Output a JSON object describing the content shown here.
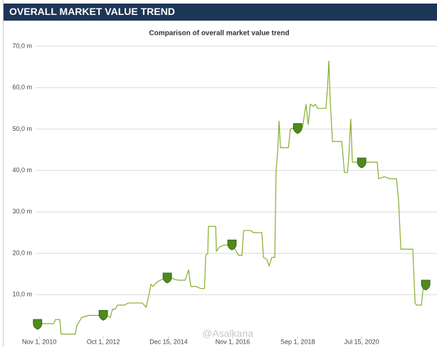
{
  "header": {
    "title": "OVERALL MARKET VALUE TREND"
  },
  "chart_data": {
    "type": "line",
    "title": "Comparison of overall market value trend",
    "x": [
      2010.76,
      2011.24,
      2011.3,
      2011.43,
      2011.47,
      2011.9,
      2011.94,
      2012.09,
      2012.31,
      2012.63,
      2012.85,
      2012.95,
      2013.02,
      2013.1,
      2013.17,
      2013.38,
      2013.49,
      2013.92,
      2014.03,
      2014.09,
      2014.18,
      2014.24,
      2014.35,
      2014.46,
      2014.6,
      2014.78,
      2014.99,
      2015.21,
      2015.31,
      2015.38,
      2015.53,
      2015.68,
      2015.79,
      2015.83,
      2015.89,
      2015.91,
      2016.13,
      2016.15,
      2016.24,
      2016.39,
      2016.62,
      2016.71,
      2016.82,
      2016.92,
      2016.97,
      2017.18,
      2017.27,
      2017.52,
      2017.57,
      2017.67,
      2017.74,
      2017.82,
      2017.91,
      2017.95,
      2018.0,
      2018.04,
      2018.08,
      2018.32,
      2018.38,
      2018.53,
      2018.75,
      2018.85,
      2018.92,
      2018.98,
      2019.07,
      2019.13,
      2019.2,
      2019.45,
      2019.5,
      2019.54,
      2019.58,
      2019.65,
      2019.93,
      2020.01,
      2020.1,
      2020.14,
      2020.2,
      2020.25,
      2020.53,
      2021.0,
      2021.04,
      2021.21,
      2021.38,
      2021.58,
      2021.64,
      2021.71,
      2022.07,
      2022.14,
      2022.18,
      2022.33,
      2022.39,
      2022.46
    ],
    "series": [
      {
        "color": "#86ad2f",
        "values": [
          3.0,
          3.0,
          4.0,
          4.0,
          0.5,
          0.5,
          2.5,
          4.5,
          5.0,
          5.0,
          5.0,
          4.5,
          6.5,
          6.5,
          7.5,
          7.5,
          8.0,
          8.0,
          7.0,
          9.0,
          12.5,
          12.0,
          13.0,
          13.5,
          14.0,
          14.0,
          13.5,
          13.5,
          16.0,
          12.0,
          12.0,
          11.5,
          11.5,
          19.5,
          20.0,
          26.5,
          26.5,
          20.5,
          21.5,
          22.0,
          22.0,
          21.0,
          19.5,
          19.5,
          25.5,
          25.5,
          25.0,
          25.0,
          19.0,
          18.5,
          17.0,
          19.0,
          19.0,
          40.0,
          45.0,
          52.0,
          45.5,
          45.5,
          50.0,
          50.5,
          50.5,
          56.0,
          51.0,
          56.0,
          55.5,
          56.0,
          55.0,
          55.0,
          60.0,
          66.5,
          57.0,
          47.0,
          47.0,
          39.5,
          39.5,
          43.0,
          52.5,
          42.0,
          42.0,
          42.0,
          38.0,
          38.5,
          38.0,
          38.0,
          33.0,
          21.0,
          21.0,
          8.0,
          7.5,
          7.5,
          12.0,
          12.0
        ]
      }
    ],
    "markers": {
      "color": "#4f8a1e",
      "x": [
        2010.76,
        2012.74,
        2014.67,
        2016.62,
        2018.6,
        2020.53,
        2022.46
      ],
      "values": [
        3.0,
        5.2,
        14.2,
        22.2,
        50.3,
        42.0,
        12.5
      ]
    },
    "xlim": [
      2010.7,
      2022.8
    ],
    "ylim": [
      0,
      70
    ],
    "xticks": [
      {
        "value": 2010.81,
        "label": "Nov 1, 2010"
      },
      {
        "value": 2012.74,
        "label": "Oct 1, 2012"
      },
      {
        "value": 2014.71,
        "label": "Dec 15, 2014"
      },
      {
        "value": 2016.64,
        "label": "Nov 1, 2016"
      },
      {
        "value": 2018.6,
        "label": "Sep 1, 2018"
      },
      {
        "value": 2020.53,
        "label": "Jul 15, 2020"
      }
    ],
    "yticks": [
      {
        "value": 10,
        "label": "10,0 m"
      },
      {
        "value": 20,
        "label": "20,0 m"
      },
      {
        "value": 30,
        "label": "30,0 m"
      },
      {
        "value": 40,
        "label": "40,0 m"
      },
      {
        "value": 50,
        "label": "50,0 m"
      },
      {
        "value": 60,
        "label": "60,0 m"
      },
      {
        "value": 70,
        "label": "70,0 m"
      }
    ],
    "grid": true,
    "watermark": "@Asalkana"
  }
}
